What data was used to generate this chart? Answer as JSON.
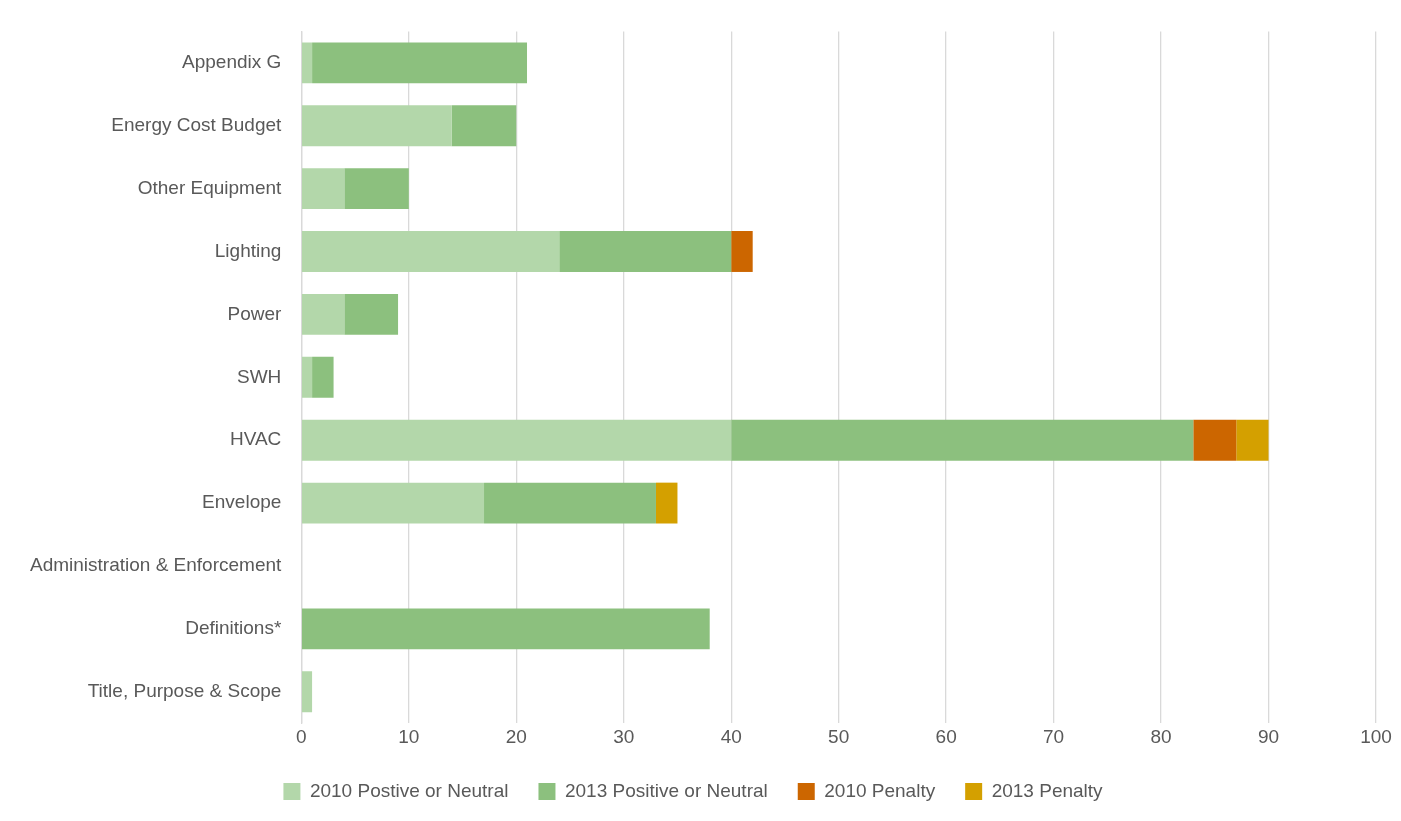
{
  "chart_data": {
    "type": "bar",
    "orientation": "horizontal",
    "stacked": true,
    "categories": [
      "Appendix G",
      "Energy Cost Budget",
      "Other Equipment",
      "Lighting",
      "Power",
      "SWH",
      "HVAC",
      "Envelope",
      "Administration & Enforcement",
      "Definitions*",
      "Title, Purpose & Scope"
    ],
    "series": [
      {
        "name": "2010 Postive or Neutral",
        "color": "#b3d7aa",
        "values": [
          1,
          14,
          4,
          24,
          4,
          1,
          40,
          17,
          0,
          0,
          1
        ]
      },
      {
        "name": "2013 Positive or Neutral",
        "color": "#8cc07e",
        "values": [
          20,
          6,
          6,
          16,
          5,
          2,
          43,
          16,
          0,
          38,
          0
        ]
      },
      {
        "name": "2010 Penalty",
        "color": "#cc6600",
        "values": [
          0,
          0,
          0,
          2,
          0,
          0,
          4,
          0,
          0,
          0,
          0
        ]
      },
      {
        "name": "2013 Penalty",
        "color": "#d4a000",
        "values": [
          0,
          0,
          0,
          0,
          0,
          0,
          3,
          2,
          0,
          0,
          0
        ]
      }
    ],
    "xlim": [
      0,
      100
    ],
    "xticks": [
      0,
      10,
      20,
      30,
      40,
      50,
      60,
      70,
      80,
      90,
      100
    ],
    "grid": "x",
    "legend": "bottom"
  }
}
